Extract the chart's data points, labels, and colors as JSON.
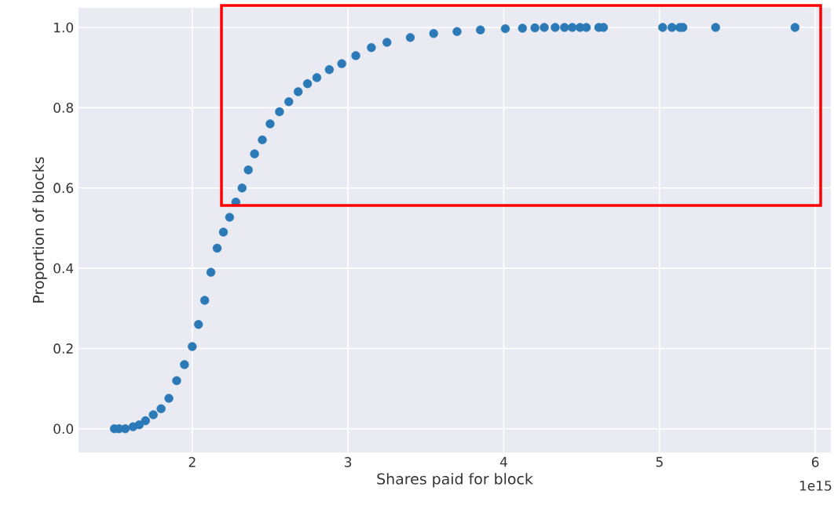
{
  "chart_data": {
    "type": "scatter",
    "xlabel": "Shares paid for block",
    "ylabel": "Proportion of blocks",
    "x": [
      1.5,
      1.53,
      1.57,
      1.62,
      1.66,
      1.7,
      1.75,
      1.8,
      1.85,
      1.9,
      1.95,
      2.0,
      2.04,
      2.08,
      2.12,
      2.16,
      2.2,
      2.24,
      2.28,
      2.32,
      2.36,
      2.4,
      2.45,
      2.5,
      2.56,
      2.62,
      2.68,
      2.74,
      2.8,
      2.88,
      2.96,
      3.05,
      3.15,
      3.25,
      3.4,
      3.55,
      3.7,
      3.85,
      4.01,
      4.12,
      4.2,
      4.26,
      4.33,
      4.39,
      4.44,
      4.49,
      4.53,
      4.61,
      4.64,
      5.02,
      5.08,
      5.13,
      5.15,
      5.36,
      5.87
    ],
    "values": [
      0.0,
      0.0,
      0.0,
      0.005,
      0.01,
      0.02,
      0.035,
      0.05,
      0.076,
      0.12,
      0.16,
      0.205,
      0.26,
      0.32,
      0.39,
      0.45,
      0.49,
      0.527,
      0.565,
      0.6,
      0.645,
      0.685,
      0.72,
      0.76,
      0.79,
      0.815,
      0.84,
      0.86,
      0.875,
      0.895,
      0.91,
      0.93,
      0.95,
      0.963,
      0.975,
      0.985,
      0.99,
      0.994,
      0.997,
      0.998,
      0.999,
      1.0,
      1.0,
      1.0,
      1.0,
      1.0,
      1.0,
      1.0,
      1.0,
      1.0,
      1.0,
      1.0,
      1.0,
      1.0,
      1.0
    ],
    "color": "#2b79b6",
    "grid": true,
    "xlim": [
      1.27,
      6.1
    ],
    "ylim": [
      -0.059,
      1.049
    ],
    "xticks": [
      2,
      3,
      4,
      5,
      6
    ],
    "yticks": [
      {
        "value": 0,
        "label": "0.0"
      },
      {
        "value": 0.2,
        "label": "0.2"
      },
      {
        "value": 0.4,
        "label": "0.4"
      },
      {
        "value": 0.6,
        "label": "0.6"
      },
      {
        "value": 0.8,
        "label": "0.8"
      },
      {
        "value": 1,
        "label": "1.0"
      }
    ],
    "annotations": [
      "1e15"
    ]
  }
}
